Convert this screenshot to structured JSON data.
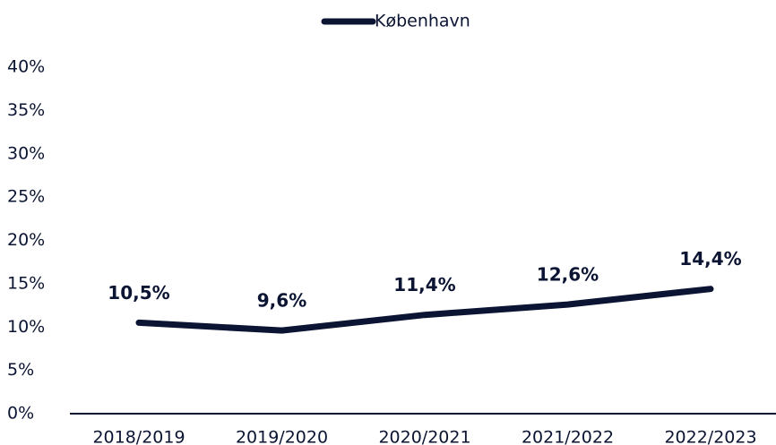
{
  "chart_data": {
    "type": "line",
    "categories": [
      "2018/2019",
      "2019/2020",
      "2020/2021",
      "2021/2022",
      "2022/2023"
    ],
    "series": [
      {
        "name": "København",
        "color": "#0b1533",
        "values": [
          10.5,
          9.6,
          11.4,
          12.6,
          14.4
        ],
        "value_labels": [
          "10,5%",
          "9,6%",
          "11,4%",
          "12,6%",
          "14,4%"
        ]
      }
    ],
    "ylim": [
      0,
      40
    ],
    "yticks": [
      {
        "value": 0,
        "label": "0%"
      },
      {
        "value": 5,
        "label": "5%"
      },
      {
        "value": 10,
        "label": "10%"
      },
      {
        "value": 15,
        "label": "15%"
      },
      {
        "value": 20,
        "label": "20%"
      },
      {
        "value": 25,
        "label": "25%"
      },
      {
        "value": 30,
        "label": "30%"
      },
      {
        "value": 35,
        "label": "35%"
      },
      {
        "value": 40,
        "label": "40%"
      }
    ],
    "legend": "top",
    "grid": false
  }
}
